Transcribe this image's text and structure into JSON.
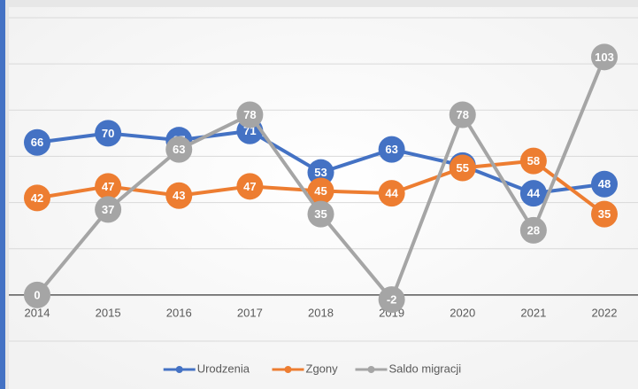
{
  "chart_data": {
    "type": "line",
    "categories": [
      "2014",
      "2015",
      "2016",
      "2017",
      "2018",
      "2019",
      "2020",
      "2021",
      "2022"
    ],
    "series": [
      {
        "name": "Urodzenia",
        "color": "#4472c4",
        "values": [
          66,
          70,
          67,
          71,
          53,
          63,
          56,
          44,
          48
        ]
      },
      {
        "name": "Zgony",
        "color": "#ed7d31",
        "values": [
          42,
          47,
          43,
          47,
          45,
          44,
          55,
          58,
          35
        ]
      },
      {
        "name": "Saldo migracji",
        "color": "#a5a5a5",
        "values": [
          0,
          37,
          63,
          78,
          35,
          -2,
          78,
          28,
          103
        ]
      }
    ],
    "ylim": [
      -20,
      120
    ],
    "yticks": [
      -20,
      0,
      20,
      40,
      60,
      80,
      100,
      120
    ],
    "grid": true,
    "legend": "bottom"
  }
}
